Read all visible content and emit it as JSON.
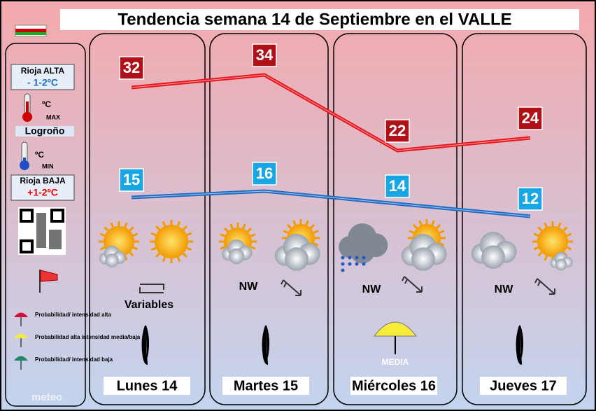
{
  "chart_data": {
    "type": "line",
    "title": "Tendencia semana 14 de Septiembre en el VALLE",
    "categories": [
      "Lunes 14",
      "Martes 15",
      "Miércoles 16",
      "Jueves 17"
    ],
    "series": [
      {
        "color": "#e8141c",
        "values": [
          32,
          34,
          22,
          24
        ]
      },
      {
        "color": "#1f6cc4",
        "values": [
          15,
          16,
          14,
          12
        ]
      }
    ]
  },
  "sidebar": {
    "alta": "Rioja ALTA",
    "alta_temp": "- 1-2ºC",
    "max_unit": "ºC",
    "max": "MAX",
    "city": "Logroño",
    "min_unit": "ºC",
    "min": "MIN",
    "baja": "Rioja BAJA",
    "baja_temp": "+1-2ºC",
    "legend": [
      "Probabilidad/ intensidad alta",
      "Probabilidad alta intensidad media/baja",
      "Probabilidad/ intensidad baja"
    ]
  },
  "wind": [
    "Variables",
    "NW",
    "NW",
    "NW"
  ],
  "umbrella_label": "MEDIA"
}
